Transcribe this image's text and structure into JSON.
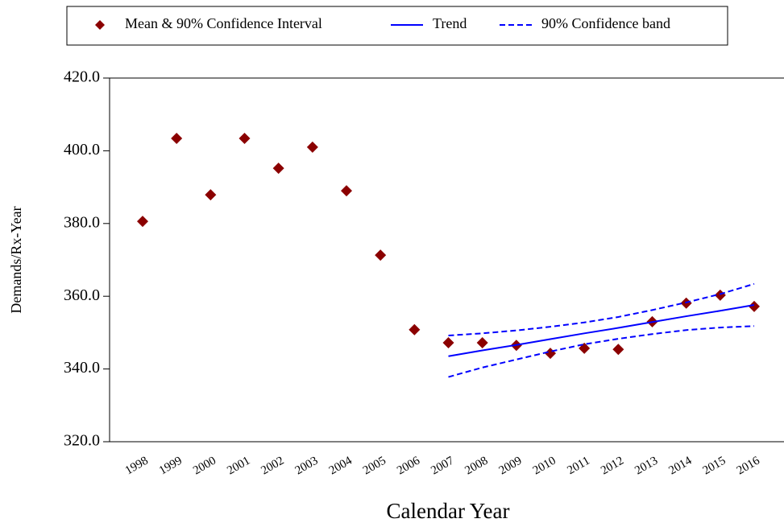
{
  "chart_data": {
    "type": "line",
    "x_label": "Calendar Year",
    "y_label": "Demands/Rx-Year",
    "categories": [
      "1998",
      "1999",
      "2000",
      "2001",
      "2002",
      "2003",
      "2004",
      "2005",
      "2006",
      "2007",
      "2008",
      "2009",
      "2010",
      "2011",
      "2012",
      "2013",
      "2014",
      "2015",
      "2016"
    ],
    "series": [
      {
        "name": "Mean & 90% Confidence Interval",
        "color": "#8b0000",
        "marker": "diamond",
        "values": [
          380.6,
          403.4,
          387.9,
          403.4,
          395.2,
          401.0,
          389.0,
          371.3,
          350.8,
          347.2,
          347.2,
          346.5,
          344.3,
          345.7,
          345.4,
          353.0,
          358.1,
          360.3,
          357.2
        ]
      },
      {
        "name": "Trend",
        "color": "#0000ff",
        "dash": "solid",
        "values": [
          null,
          null,
          null,
          null,
          null,
          null,
          null,
          null,
          null,
          343.5,
          345.1,
          346.6,
          348.2,
          349.8,
          351.3,
          352.9,
          354.5,
          356.0,
          357.6
        ]
      },
      {
        "name": "90% Confidence band",
        "color": "#0000ff",
        "dash": "dashed",
        "values": [
          null,
          null,
          null,
          null,
          null,
          null,
          null,
          null,
          null,
          349.2,
          349.8,
          350.6,
          351.6,
          352.8,
          354.3,
          356.2,
          358.3,
          360.6,
          363.4
        ]
      },
      {
        "color": "#0000ff",
        "dash": "dashed",
        "values": [
          null,
          null,
          null,
          null,
          null,
          null,
          null,
          null,
          null,
          337.8,
          340.4,
          342.6,
          344.8,
          346.8,
          348.3,
          349.6,
          350.7,
          351.4,
          351.8
        ]
      }
    ],
    "ylim": [
      320,
      420
    ],
    "yticks": [
      {
        "value": 320,
        "label": "320.0"
      },
      {
        "value": 340,
        "label": "340.0"
      },
      {
        "value": 360,
        "label": "360.0"
      },
      {
        "value": 380,
        "label": "380.0"
      },
      {
        "value": 400,
        "label": "400.0"
      },
      {
        "value": 420,
        "label": "420.0"
      }
    ]
  }
}
